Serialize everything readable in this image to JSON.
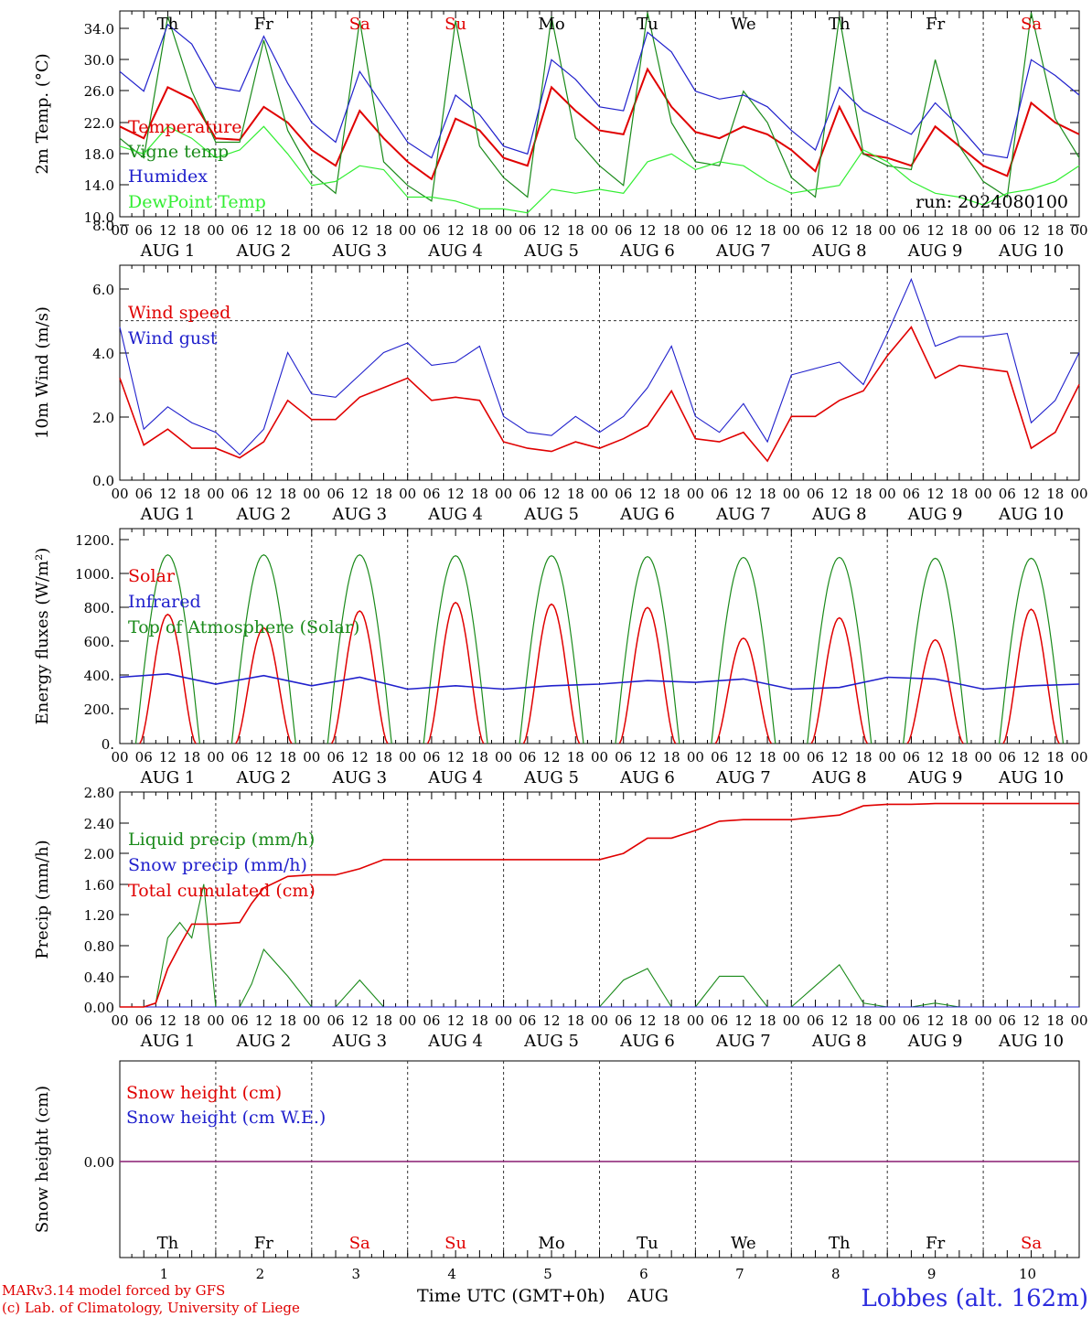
{
  "footer": {
    "model": "MARv3.14 model forced by GFS",
    "lab": "(c) Lab. of Climatology, University of Liege",
    "xtitle": "Time UTC (GMT+0h)",
    "month": "AUG",
    "station": "Lobbes (alt. 162m)"
  },
  "axis": {
    "hour_ticks": [
      "00",
      "06",
      "12",
      "18"
    ],
    "end_tick": "00",
    "date_labels": [
      "AUG  1",
      "AUG  2",
      "AUG  3",
      "AUG  4",
      "AUG  5",
      "AUG  6",
      "AUG  7",
      "AUG  8",
      "AUG  9",
      "AUG 10"
    ],
    "weekdays": [
      "Th",
      "Fr",
      "Sa",
      "Su",
      "Mo",
      "Tu",
      "We",
      "Th",
      "Fr",
      "Sa"
    ],
    "weekday_colors": [
      "#000000",
      "#000000",
      "#e00000",
      "#e00000",
      "#000000",
      "#000000",
      "#000000",
      "#000000",
      "#000000",
      "#e00000"
    ],
    "day_numbers": [
      "1",
      "2",
      "3",
      "4",
      "5",
      "6",
      "7",
      "8",
      "9",
      "10"
    ]
  },
  "chart_data": [
    {
      "type": "line",
      "ylabel": "2m Temp. (°C)",
      "ylim": [
        10,
        36
      ],
      "yticks": [
        "10.0",
        "14.0",
        "18.0",
        "22.0",
        "26.0",
        "30.0",
        "34.0"
      ],
      "annotation": "run: 2024080100",
      "legend": [
        "Temperature",
        "Vigne temp",
        "Humidex",
        "DewPoint Temp"
      ],
      "x_hours": [
        0,
        6,
        12,
        18,
        24,
        30,
        36,
        42,
        48,
        54,
        60,
        66,
        72,
        78,
        84,
        90,
        96,
        102,
        108,
        114,
        120,
        126,
        132,
        138,
        144,
        150,
        156,
        162,
        168,
        174,
        180,
        186,
        192,
        198,
        204,
        210,
        216,
        222,
        228,
        234,
        240
      ],
      "series": [
        {
          "name": "Temperature",
          "color": "#e00000",
          "values": [
            21.5,
            20.0,
            26.5,
            25.0,
            20.0,
            19.8,
            24.0,
            22.0,
            18.5,
            16.5,
            23.5,
            20.0,
            17.0,
            14.8,
            22.5,
            21.0,
            17.5,
            16.5,
            26.5,
            23.5,
            21.0,
            20.5,
            28.8,
            24.0,
            20.8,
            20.0,
            21.5,
            20.5,
            18.5,
            15.8,
            24.0,
            18.0,
            17.5,
            16.5,
            21.5,
            19.0,
            16.5,
            15.2,
            24.5,
            22.0,
            20.5
          ]
        },
        {
          "name": "Vigne temp",
          "color": "#1a8a1a",
          "values": [
            20.0,
            17.5,
            35.5,
            26.0,
            19.5,
            19.5,
            32.5,
            21.0,
            15.5,
            13.0,
            35.0,
            17.0,
            14.0,
            12.0,
            35.0,
            19.0,
            15.0,
            12.5,
            35.5,
            20.0,
            16.5,
            14.0,
            36.0,
            22.0,
            17.0,
            16.5,
            26.0,
            22.0,
            15.0,
            12.5,
            35.5,
            18.0,
            16.5,
            16.0,
            30.0,
            19.0,
            14.5,
            12.5,
            36.0,
            22.5,
            17.5
          ]
        },
        {
          "name": "Humidex",
          "color": "#2020cc",
          "values": [
            28.5,
            26.0,
            34.5,
            32.0,
            26.5,
            26.0,
            33.0,
            27.0,
            22.0,
            19.5,
            28.5,
            24.0,
            19.5,
            17.5,
            25.5,
            23.0,
            19.0,
            18.0,
            30.0,
            27.5,
            24.0,
            23.5,
            33.5,
            31.0,
            26.0,
            25.0,
            25.5,
            24.0,
            21.0,
            18.5,
            26.5,
            23.5,
            22.0,
            20.5,
            24.5,
            21.5,
            18.0,
            17.5,
            30.0,
            28.0,
            25.5
          ]
        },
        {
          "name": "DewPoint Temp",
          "color": "#33ee33",
          "values": [
            19.0,
            18.0,
            21.5,
            20.0,
            17.5,
            18.5,
            21.5,
            18.0,
            14.0,
            14.5,
            16.5,
            16.0,
            12.5,
            12.5,
            12.0,
            11.0,
            11.0,
            10.5,
            13.5,
            13.0,
            13.5,
            13.0,
            17.0,
            18.0,
            16.0,
            17.0,
            16.5,
            14.5,
            13.0,
            13.5,
            14.0,
            18.5,
            17.0,
            14.5,
            13.0,
            12.5,
            11.5,
            13.0,
            13.5,
            14.5,
            16.5
          ]
        }
      ]
    },
    {
      "type": "line",
      "ylabel": "10m Wind (m/s)",
      "ylim": [
        0,
        8
      ],
      "yticks": [
        "0.0",
        "2.0",
        "4.0",
        "6.0",
        "8.0"
      ],
      "reference_line": 5.0,
      "legend": [
        "Wind speed",
        "Wind gust"
      ],
      "x_hours": [
        0,
        6,
        12,
        18,
        24,
        30,
        36,
        42,
        48,
        54,
        60,
        66,
        72,
        78,
        84,
        90,
        96,
        102,
        108,
        114,
        120,
        126,
        132,
        138,
        144,
        150,
        156,
        162,
        168,
        174,
        180,
        186,
        192,
        198,
        204,
        210,
        216,
        222,
        228,
        234,
        240
      ],
      "series": [
        {
          "name": "Wind speed",
          "color": "#e00000",
          "values": [
            3.2,
            1.1,
            1.6,
            1.0,
            1.0,
            0.7,
            1.2,
            2.5,
            1.9,
            1.9,
            2.6,
            2.9,
            3.2,
            2.5,
            2.6,
            2.5,
            1.2,
            1.0,
            0.9,
            1.2,
            1.0,
            1.3,
            1.7,
            2.8,
            1.3,
            1.2,
            1.5,
            0.6,
            2.0,
            2.0,
            2.5,
            2.8,
            3.9,
            4.8,
            3.2,
            3.6,
            3.5,
            3.4,
            1.0,
            1.5,
            3.0
          ]
        },
        {
          "name": "Wind gust",
          "color": "#2020cc",
          "values": [
            4.8,
            1.6,
            2.3,
            1.8,
            1.5,
            0.8,
            1.6,
            4.0,
            2.7,
            2.6,
            3.3,
            4.0,
            4.3,
            3.6,
            3.7,
            4.2,
            2.0,
            1.5,
            1.4,
            2.0,
            1.5,
            2.0,
            2.9,
            4.2,
            2.0,
            1.5,
            2.4,
            1.2,
            3.3,
            3.5,
            3.7,
            3.0,
            4.6,
            6.3,
            4.2,
            4.5,
            4.5,
            4.6,
            1.8,
            2.5,
            4.0
          ]
        }
      ]
    },
    {
      "type": "line",
      "ylabel": "Energy fluxes (W/m²)",
      "ylim": [
        0,
        1200
      ],
      "yticks": [
        "0.",
        "200.",
        "400.",
        "600.",
        "800.",
        "1000.",
        "1200."
      ],
      "legend": [
        "Solar",
        "Infrared",
        "Top of Atmosphere (Solar)"
      ],
      "series": [
        {
          "name": "Solar",
          "color": "#e00000",
          "daily_peak": [
            760,
            680,
            780,
            830,
            820,
            800,
            620,
            740,
            610,
            790
          ]
        },
        {
          "name": "Infrared",
          "color": "#2020cc",
          "x_hours": [
            0,
            12,
            24,
            36,
            48,
            60,
            72,
            84,
            96,
            108,
            120,
            132,
            144,
            156,
            168,
            180,
            192,
            204,
            216,
            228,
            240
          ],
          "values": [
            390,
            410,
            350,
            400,
            340,
            390,
            320,
            340,
            320,
            340,
            350,
            370,
            360,
            380,
            320,
            330,
            390,
            380,
            320,
            340,
            350
          ]
        },
        {
          "name": "Top of Atmosphere (Solar)",
          "color": "#1a8a1a",
          "daily_peak": [
            1110,
            1110,
            1110,
            1105,
            1105,
            1100,
            1095,
            1095,
            1090,
            1090
          ]
        }
      ]
    },
    {
      "type": "line",
      "ylabel": "Precip (mm/h)",
      "ylim": [
        0,
        2.8
      ],
      "yticks": [
        "0.00",
        "0.40",
        "0.80",
        "1.20",
        "1.60",
        "2.00",
        "2.40",
        "2.80"
      ],
      "legend": [
        "Liquid precip (mm/h)",
        "Snow precip (mm/h)",
        "Total cumulated (cm)"
      ],
      "x_hours": [
        0,
        6,
        9,
        12,
        15,
        18,
        21,
        24,
        30,
        33,
        36,
        42,
        48,
        54,
        60,
        66,
        72,
        78,
        84,
        96,
        120,
        126,
        132,
        138,
        144,
        150,
        156,
        162,
        168,
        180,
        186,
        192,
        198,
        204,
        210,
        216,
        240
      ],
      "series": [
        {
          "name": "Liquid precip (mm/h)",
          "color": "#1a8a1a",
          "values": [
            0,
            0,
            0.05,
            0.9,
            1.1,
            0.9,
            1.6,
            0,
            0,
            0.3,
            0.75,
            0.4,
            0,
            0,
            0.35,
            0,
            0,
            0,
            0,
            0,
            0,
            0.35,
            0.5,
            0,
            0,
            0.4,
            0.4,
            0,
            0,
            0.55,
            0.05,
            0,
            0,
            0.05,
            0,
            0,
            0
          ]
        },
        {
          "name": "Snow precip (mm/h)",
          "color": "#2020cc",
          "values": [
            0,
            0,
            0,
            0,
            0,
            0,
            0,
            0,
            0,
            0,
            0,
            0,
            0,
            0,
            0,
            0,
            0,
            0,
            0,
            0,
            0,
            0,
            0,
            0,
            0,
            0,
            0,
            0,
            0,
            0,
            0,
            0,
            0,
            0,
            0,
            0,
            0
          ]
        },
        {
          "name": "Total cumulated (cm)",
          "color": "#e00000",
          "values": [
            0,
            0,
            0.05,
            0.5,
            0.8,
            1.08,
            1.08,
            1.08,
            1.1,
            1.35,
            1.55,
            1.7,
            1.72,
            1.72,
            1.8,
            1.92,
            1.92,
            1.92,
            1.92,
            1.92,
            1.92,
            2.0,
            2.2,
            2.2,
            2.3,
            2.42,
            2.44,
            2.44,
            2.44,
            2.5,
            2.62,
            2.64,
            2.64,
            2.65,
            2.65,
            2.65,
            2.65
          ]
        }
      ]
    },
    {
      "type": "line",
      "ylabel": "Snow height (cm)",
      "ylim": [
        -1,
        1
      ],
      "yticks": [
        "0.00"
      ],
      "legend": [
        "Snow height (cm)",
        "Snow height (cm W.E.)"
      ],
      "series": [
        {
          "name": "Snow height (cm)",
          "color": "#e00000",
          "value": 0
        },
        {
          "name": "Snow height (cm W.E.)",
          "color": "#2020cc",
          "value": 0
        }
      ]
    }
  ]
}
